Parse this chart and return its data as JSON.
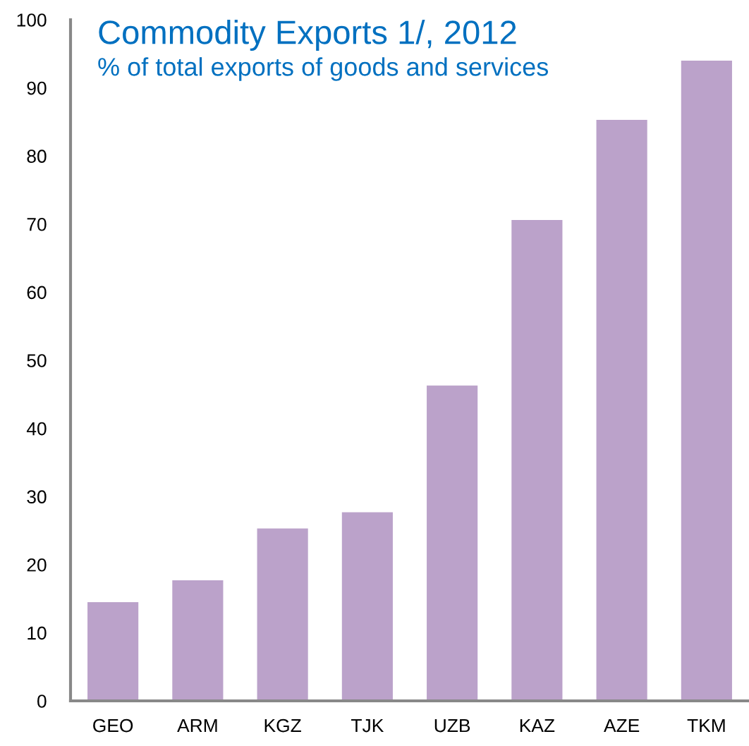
{
  "chart_data": {
    "type": "bar",
    "title": "Commodity Exports 1/, 2012",
    "subtitle": "% of total exports of goods and services",
    "categories": [
      "GEO",
      "ARM",
      "KGZ",
      "TJK",
      "UZB",
      "KAZ",
      "AZE",
      "TKM"
    ],
    "values": [
      14.5,
      17.7,
      25.3,
      27.7,
      46.3,
      70.6,
      85.3,
      94.0
    ],
    "color": "#bba2ca",
    "ylim": [
      0,
      100
    ],
    "yticks": [
      0,
      10,
      20,
      30,
      40,
      50,
      60,
      70,
      80,
      90,
      100
    ],
    "grid": false
  }
}
